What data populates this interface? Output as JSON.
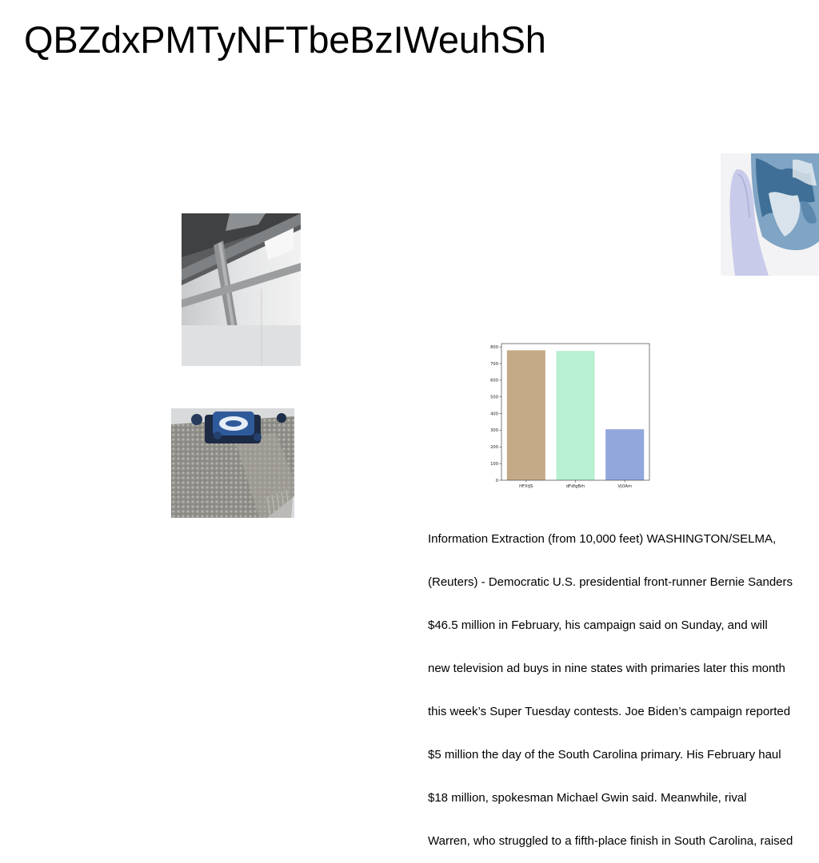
{
  "page": {
    "title": "QBZdxPMTyNFTbeBzIWeuhSh"
  },
  "images": [
    {
      "name": "warehouse-ceiling-photo"
    },
    {
      "name": "scarf-with-box-photo"
    },
    {
      "name": "hand-holding-globe-glass-photo"
    }
  ],
  "chart_data": {
    "type": "bar",
    "categories": [
      "HFXtJS",
      "dFdfgBrh",
      "VjOAm"
    ],
    "values": [
      780,
      776,
      306
    ],
    "colors": [
      "#c4aa87",
      "#b7f0d2",
      "#92a8dd"
    ],
    "yticks": [
      0,
      100,
      200,
      300,
      400,
      500,
      600,
      700,
      800
    ],
    "ylim": [
      0,
      820
    ],
    "title": "",
    "xlabel": "",
    "ylabel": "",
    "grid": false
  },
  "article": {
    "lines": [
      "Information Extraction (from 10,000 feet) WASHINGTON/SELMA,",
      "(Reuters) - Democratic U.S. presidential front-runner Bernie Sanders",
      "$46.5 million in February, his campaign said on Sunday, and will",
      "new television ad buys in nine states with primaries later this month",
      "this week’s Super Tuesday contests. Joe Biden’s campaign reported",
      "$5 million the day of the South Carolina primary. His February haul",
      "$18 million, spokesman Michael Gwin said. Meanwhile, rival",
      "Warren, who struggled to a fifth-place finish in South Carolina, raised"
    ]
  }
}
